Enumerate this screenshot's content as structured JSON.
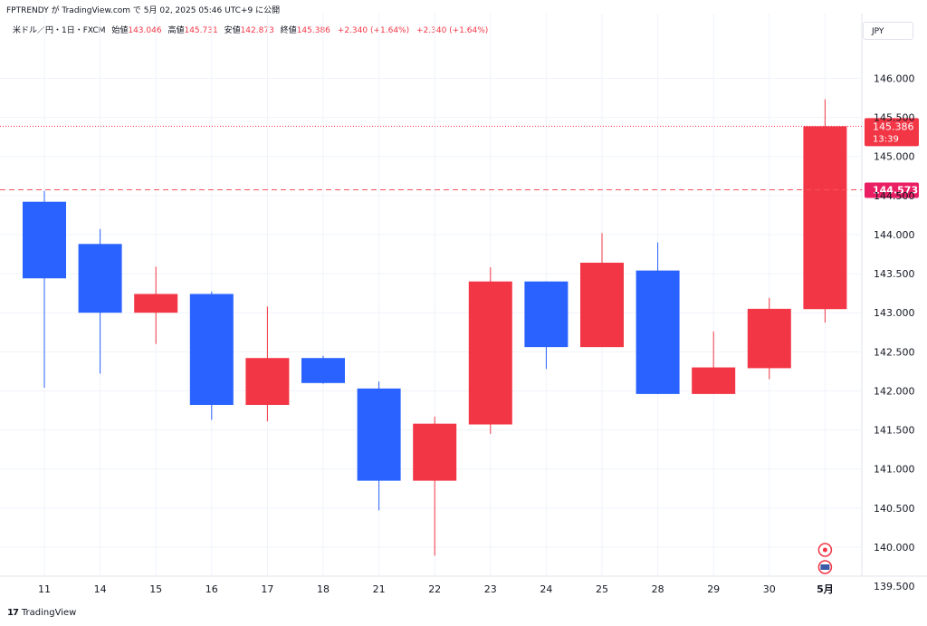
{
  "header": {
    "text": "FPTRENDY が TradingView.com で 5月 02, 2025 05:46 UTC+9 に公開"
  },
  "legend": {
    "symbol": "米ドル／円・1日・FXCM",
    "open_label": "始値",
    "open": "143.046",
    "high_label": "高値",
    "high": "145.731",
    "low_label": "安値",
    "low": "142.873",
    "close_label": "終値",
    "close": "145.386",
    "change1": "+2.340 (+1.64%)",
    "change2": "+2.340 (+1.64%)"
  },
  "currency": "JPY",
  "footer": {
    "logo": "17",
    "brand": "TradingView"
  },
  "colors": {
    "up": "#f23645",
    "down": "#2962ff",
    "grid": "#f0f3fa",
    "axis_text": "#131722",
    "ref_line": "#f7525f"
  },
  "chart_data": {
    "type": "candlestick",
    "ylim": [
      139.35,
      146.55
    ],
    "y_ticks": [
      {
        "value": 146.0,
        "label": "146.000"
      },
      {
        "value": 145.5,
        "label": "145.500"
      },
      {
        "value": 145.0,
        "label": "145.000"
      },
      {
        "value": 144.5,
        "label": "144.500"
      },
      {
        "value": 144.0,
        "label": "144.000"
      },
      {
        "value": 143.5,
        "label": "143.500"
      },
      {
        "value": 143.0,
        "label": "143.000"
      },
      {
        "value": 142.5,
        "label": "142.500"
      },
      {
        "value": 142.0,
        "label": "142.000"
      },
      {
        "value": 141.5,
        "label": "141.500"
      },
      {
        "value": 141.0,
        "label": "141.000"
      },
      {
        "value": 140.5,
        "label": "140.500"
      },
      {
        "value": 140.0,
        "label": "140.000"
      },
      {
        "value": 139.5,
        "label": "139.500"
      }
    ],
    "candles": [
      {
        "date": "11",
        "open": 144.42,
        "high": 144.56,
        "low": 142.04,
        "close": 143.44
      },
      {
        "date": "14",
        "open": 143.88,
        "high": 144.07,
        "low": 142.22,
        "close": 143.0
      },
      {
        "date": "15",
        "open": 143.0,
        "high": 143.59,
        "low": 142.6,
        "close": 143.24
      },
      {
        "date": "16",
        "open": 143.24,
        "high": 143.27,
        "low": 141.63,
        "close": 141.82
      },
      {
        "date": "17",
        "open": 141.82,
        "high": 143.08,
        "low": 141.61,
        "close": 142.42
      },
      {
        "date": "18",
        "open": 142.42,
        "high": 142.45,
        "low": 142.09,
        "close": 142.1
      },
      {
        "date": "21",
        "open": 142.03,
        "high": 142.12,
        "low": 140.47,
        "close": 140.85
      },
      {
        "date": "22",
        "open": 140.85,
        "high": 141.67,
        "low": 139.89,
        "close": 141.58
      },
      {
        "date": "23",
        "open": 141.57,
        "high": 143.58,
        "low": 141.45,
        "close": 143.4
      },
      {
        "date": "24",
        "open": 143.4,
        "high": 143.4,
        "low": 142.28,
        "close": 142.56
      },
      {
        "date": "25",
        "open": 142.56,
        "high": 144.02,
        "low": 142.56,
        "close": 143.64
      },
      {
        "date": "28",
        "open": 143.54,
        "high": 143.9,
        "low": 141.96,
        "close": 141.96
      },
      {
        "date": "29",
        "open": 141.96,
        "high": 142.76,
        "low": 141.96,
        "close": 142.3
      },
      {
        "date": "30",
        "open": 142.29,
        "high": 143.19,
        "low": 142.15,
        "close": 143.05
      },
      {
        "date": "5月",
        "open": 143.046,
        "high": 145.731,
        "low": 142.873,
        "close": 145.386
      }
    ],
    "last_price": {
      "value": 145.386,
      "label": "145.386",
      "countdown": "13:39"
    },
    "ref_line": {
      "value": 144.573,
      "label": "144.573"
    }
  }
}
